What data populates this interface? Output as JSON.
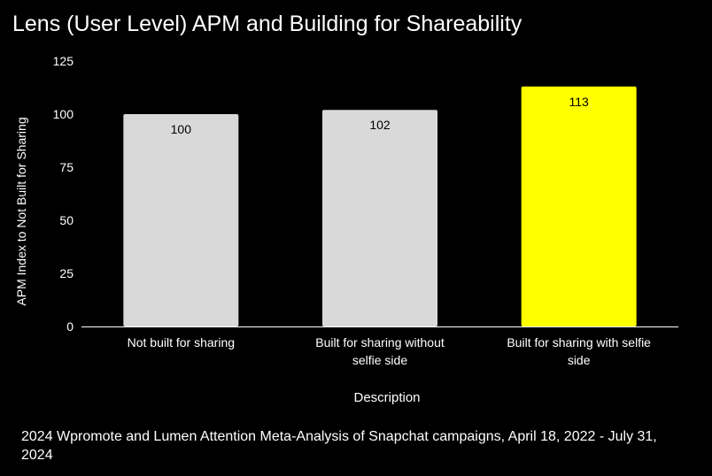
{
  "chart_data": {
    "type": "bar",
    "title": "Lens (User Level) APM and Building for Shareability",
    "categories": [
      [
        "Not built for sharing"
      ],
      [
        "Built for sharing without",
        "selfie side"
      ],
      [
        "Built for sharing with selfie",
        "side"
      ]
    ],
    "values": [
      100,
      102,
      113
    ],
    "data_labels": [
      "100",
      "102",
      "113"
    ],
    "bar_colors": [
      "#d9d9d9",
      "#d9d9d9",
      "#ffff00"
    ],
    "xlabel": "Description",
    "ylabel": "APM Index to Not Built for Sharing",
    "ylim": [
      0,
      125
    ],
    "yticks": [
      0,
      25,
      50,
      75,
      100,
      125
    ],
    "grid": false,
    "legend": "none"
  },
  "footnote": "2024 Wpromote and Lumen Attention Meta-Analysis of Snapchat campaigns, April 18, 2022 - July 31, 2024",
  "colors": {
    "background": "#000000",
    "text": "#ffffff",
    "axis": "#ffffff"
  }
}
